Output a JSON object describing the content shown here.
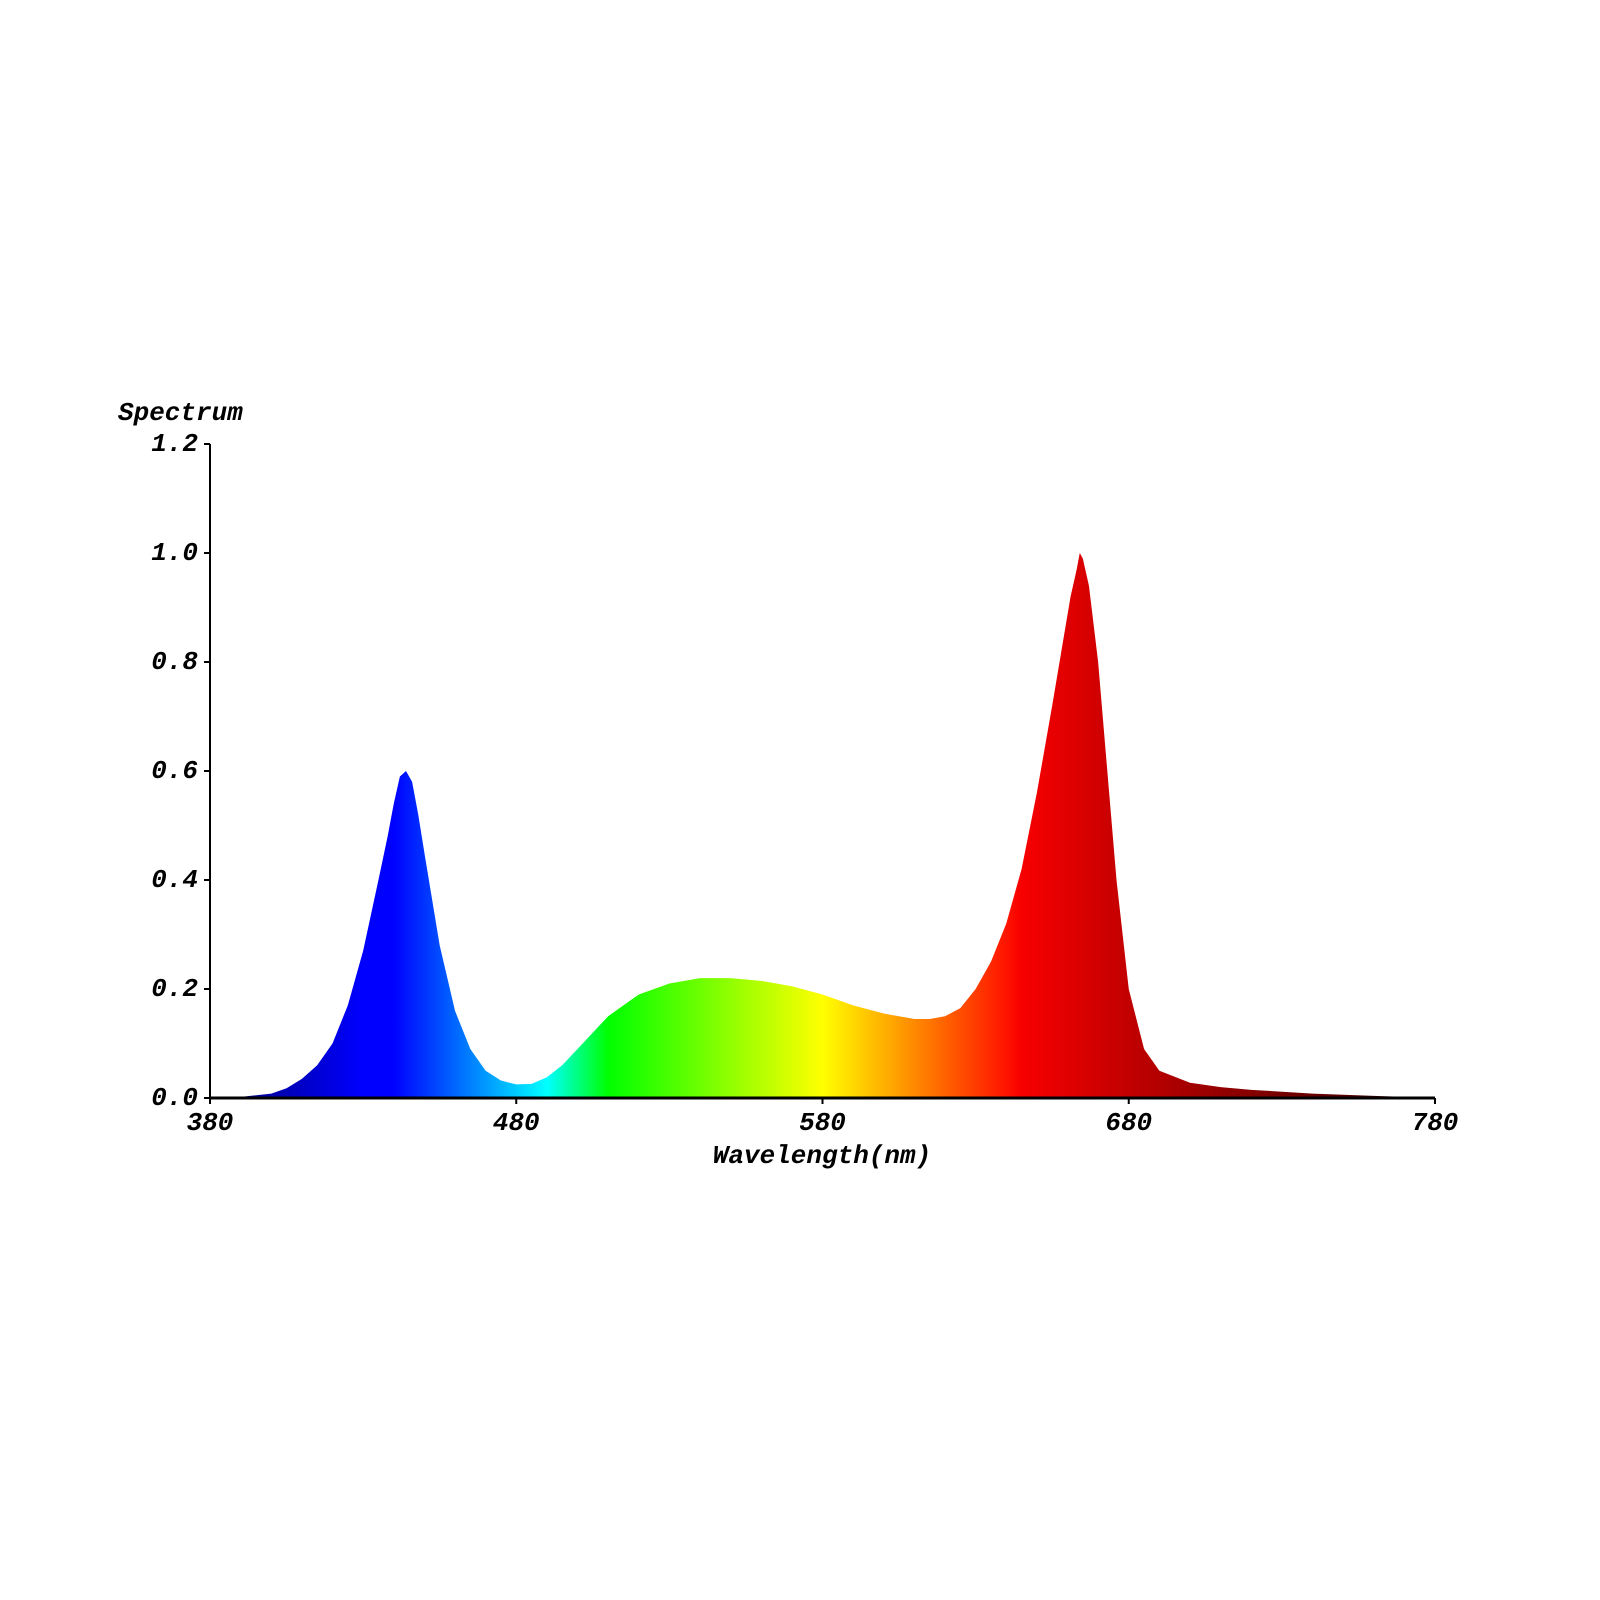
{
  "chart_data": {
    "type": "area",
    "y_label": "Spectrum",
    "x_label": "Wavelength(nm)",
    "x": [
      380,
      390,
      400,
      405,
      410,
      415,
      420,
      425,
      430,
      435,
      438,
      440,
      442,
      444,
      446,
      448,
      450,
      455,
      460,
      465,
      470,
      475,
      480,
      485,
      490,
      495,
      500,
      505,
      510,
      520,
      530,
      540,
      550,
      560,
      570,
      580,
      590,
      600,
      610,
      615,
      620,
      625,
      630,
      635,
      640,
      645,
      650,
      655,
      658,
      661,
      663,
      664,
      665,
      667,
      670,
      673,
      676,
      680,
      685,
      690,
      700,
      710,
      720,
      740,
      760,
      780
    ],
    "values": [
      0,
      0.002,
      0.008,
      0.018,
      0.035,
      0.06,
      0.1,
      0.17,
      0.27,
      0.4,
      0.48,
      0.54,
      0.59,
      0.6,
      0.58,
      0.52,
      0.45,
      0.28,
      0.16,
      0.09,
      0.05,
      0.032,
      0.025,
      0.026,
      0.038,
      0.06,
      0.09,
      0.12,
      0.15,
      0.19,
      0.21,
      0.22,
      0.22,
      0.215,
      0.205,
      0.19,
      0.17,
      0.155,
      0.145,
      0.145,
      0.15,
      0.165,
      0.2,
      0.25,
      0.32,
      0.42,
      0.56,
      0.72,
      0.82,
      0.92,
      0.97,
      1.0,
      0.99,
      0.94,
      0.8,
      0.6,
      0.4,
      0.2,
      0.09,
      0.05,
      0.028,
      0.02,
      0.015,
      0.008,
      0.004,
      0
    ],
    "xlim": [
      380,
      780
    ],
    "xticks": [
      380,
      480,
      580,
      680,
      780
    ],
    "ylim": [
      0,
      1.2
    ],
    "yticks": [
      {
        "value": 0,
        "label": "0.0"
      },
      0.2,
      0.4,
      0.6,
      0.8,
      {
        "value": 1,
        "label": "1.0"
      },
      1.2
    ],
    "axis_color": "#000000"
  }
}
